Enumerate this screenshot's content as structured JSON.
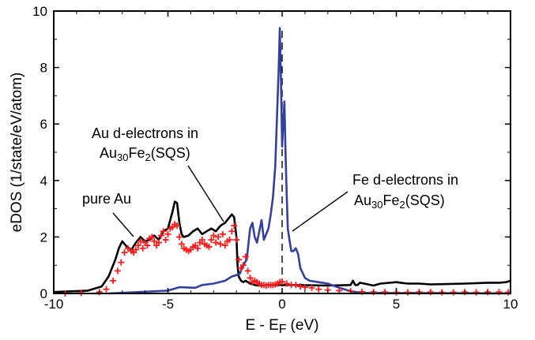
{
  "chart_data": {
    "type": "line",
    "xlabel": "E - E",
    "xlabel_sub": "F",
    "xlabel_unit": "(eV)",
    "ylabel": "eDOS (1/state/eV/atom)",
    "xlim": [
      -10,
      10
    ],
    "ylim": [
      0,
      10
    ],
    "x_ticks": [
      -10,
      -5,
      0,
      5,
      10
    ],
    "x_tick_labels": [
      "-10",
      "-5",
      "0",
      "5",
      "10"
    ],
    "y_ticks": [
      0,
      2,
      4,
      6,
      8,
      10
    ],
    "y_tick_labels": [
      "0",
      "2",
      "4",
      "6",
      "8",
      "10"
    ],
    "fermi_level": 0,
    "colors": {
      "pure_au": "#000000",
      "au_d": "#ff1a1a",
      "fe_d": "#3340a0"
    },
    "series": [
      {
        "key": "pure_au",
        "style": "line",
        "x": [
          -10,
          -8.5,
          -7.9,
          -7.6,
          -7.3,
          -7.15,
          -7.0,
          -6.8,
          -6.6,
          -6.4,
          -6.2,
          -6.0,
          -5.8,
          -5.6,
          -5.4,
          -5.2,
          -5.0,
          -4.9,
          -4.8,
          -4.7,
          -4.6,
          -4.5,
          -4.4,
          -4.3,
          -4.1,
          -3.9,
          -3.7,
          -3.5,
          -3.3,
          -3.1,
          -2.9,
          -2.7,
          -2.5,
          -2.3,
          -2.2,
          -2.1,
          -2.0,
          -1.95,
          -1.9,
          -1.8,
          -1.7,
          -1.6,
          -1.4,
          -1.2,
          -1.0,
          -0.5,
          0.5,
          2,
          3,
          3.1,
          3.2,
          3.3,
          3.4,
          3.6,
          4,
          4.3,
          5,
          5.5,
          6,
          6.5,
          7,
          8,
          9,
          9.5,
          9.8,
          10
        ],
        "y": [
          0.05,
          0.1,
          0.25,
          0.6,
          1.2,
          1.6,
          1.85,
          1.65,
          1.55,
          1.8,
          2.0,
          1.85,
          1.9,
          2.05,
          1.9,
          2.2,
          2.3,
          2.6,
          2.9,
          3.25,
          3.2,
          2.5,
          2.1,
          2.0,
          2.05,
          2.2,
          2.3,
          2.1,
          2.2,
          2.3,
          2.2,
          2.4,
          2.5,
          2.7,
          2.8,
          2.7,
          2.0,
          1.0,
          0.6,
          0.45,
          0.4,
          0.45,
          0.35,
          0.3,
          0.28,
          0.3,
          0.3,
          0.28,
          0.3,
          0.45,
          0.3,
          0.3,
          0.38,
          0.35,
          0.28,
          0.35,
          0.4,
          0.35,
          0.35,
          0.32,
          0.33,
          0.35,
          0.38,
          0.38,
          0.4,
          0.45
        ]
      },
      {
        "key": "fe_d",
        "style": "line",
        "x": [
          -7.6,
          -5,
          -4.5,
          -3.8,
          -3.5,
          -3.0,
          -2.5,
          -2.2,
          -2.0,
          -1.85,
          -1.7,
          -1.55,
          -1.4,
          -1.3,
          -1.2,
          -1.1,
          -1.0,
          -0.9,
          -0.8,
          -0.6,
          -0.5,
          -0.4,
          -0.3,
          -0.2,
          -0.15,
          -0.1,
          -0.05,
          0.0,
          0.05,
          0.1,
          0.15,
          0.2,
          0.25,
          0.3,
          0.4,
          0.5,
          0.6,
          0.7,
          0.8,
          1.0,
          1.2,
          1.6,
          2.0,
          2.5,
          3.0,
          3.5,
          10
        ],
        "y": [
          0.0,
          0.1,
          0.22,
          0.2,
          0.3,
          0.35,
          0.45,
          0.6,
          0.65,
          0.7,
          1.0,
          1.2,
          2.3,
          2.5,
          2.0,
          1.8,
          2.2,
          2.6,
          1.9,
          2.3,
          2.8,
          3.4,
          4.5,
          6.8,
          8.0,
          9.4,
          7.5,
          5.2,
          6.0,
          6.8,
          5.0,
          3.5,
          2.3,
          2.0,
          1.5,
          1.5,
          1.6,
          1.4,
          0.9,
          0.55,
          0.45,
          0.4,
          0.35,
          0.2,
          0.08,
          0.02,
          0.0
        ]
      },
      {
        "key": "au_d",
        "style": "markers",
        "x": [
          -9.5,
          -8.8,
          -8.0,
          -7.7,
          -7.4,
          -7.2,
          -7.05,
          -6.9,
          -6.75,
          -6.6,
          -6.5,
          -6.4,
          -6.3,
          -6.2,
          -6.1,
          -6.0,
          -5.9,
          -5.8,
          -5.7,
          -5.6,
          -5.5,
          -5.4,
          -5.3,
          -5.2,
          -5.1,
          -5.0,
          -4.9,
          -4.8,
          -4.7,
          -4.6,
          -4.5,
          -4.4,
          -4.3,
          -4.2,
          -4.1,
          -4.0,
          -3.9,
          -3.8,
          -3.7,
          -3.6,
          -3.5,
          -3.4,
          -3.3,
          -3.2,
          -3.1,
          -3.0,
          -2.9,
          -2.8,
          -2.7,
          -2.6,
          -2.5,
          -2.4,
          -2.3,
          -2.2,
          -2.1,
          -2.0,
          -1.9,
          -1.8,
          -1.7,
          -1.6,
          -1.5,
          -1.4,
          -1.3,
          -1.2,
          -1.1,
          -1.0,
          -0.9,
          -0.8,
          -0.7,
          -0.6,
          -0.5,
          -0.4,
          -0.3,
          -0.2,
          -0.1,
          0.0,
          0.2,
          0.4,
          0.6,
          0.8,
          1.0,
          1.3,
          1.6,
          2.0,
          2.5,
          3.0,
          3.5,
          4.0,
          4.5,
          5.0,
          5.5,
          6.0,
          6.5,
          7.0,
          7.5,
          8.0,
          8.5,
          9.0,
          9.5,
          9.9
        ],
        "y": [
          0.0,
          0.02,
          0.05,
          0.15,
          0.45,
          0.8,
          1.1,
          1.45,
          1.6,
          1.5,
          1.45,
          1.55,
          1.7,
          1.85,
          1.6,
          1.8,
          1.7,
          1.95,
          2.0,
          1.85,
          1.7,
          1.8,
          2.05,
          2.2,
          1.9,
          2.1,
          2.3,
          2.35,
          2.45,
          2.4,
          2.0,
          1.75,
          1.6,
          1.55,
          1.5,
          1.55,
          1.65,
          1.7,
          1.6,
          1.8,
          1.9,
          1.75,
          1.7,
          1.65,
          1.9,
          2.05,
          1.8,
          2.0,
          1.75,
          2.1,
          1.7,
          1.85,
          1.9,
          2.2,
          2.4,
          1.9,
          1.2,
          0.9,
          1.0,
          1.3,
          0.8,
          0.55,
          0.4,
          0.45,
          0.4,
          0.35,
          0.3,
          0.3,
          0.28,
          0.3,
          0.3,
          0.3,
          0.32,
          0.35,
          0.4,
          0.42,
          0.35,
          0.3,
          0.3,
          0.25,
          0.22,
          0.2,
          0.15,
          0.12,
          0.1,
          0.08,
          0.06,
          0.05,
          0.05,
          0.04,
          0.04,
          0.05,
          0.05,
          0.04,
          0.04,
          0.05,
          0.04,
          0.05,
          0.05,
          0.04
        ]
      }
    ],
    "annotations": [
      {
        "key": "pure_au",
        "lines": [
          "pure Au"
        ]
      },
      {
        "key": "au_d",
        "lines": [
          "Au d-electrons in",
          "Au30Fe2(SQS)"
        ]
      },
      {
        "key": "fe_d",
        "lines": [
          "Fe d-electrons in",
          "Au30Fe2(SQS)"
        ]
      }
    ],
    "formula": {
      "a": "Au",
      "a_sub": "30",
      "b": "Fe",
      "b_sub": "2",
      "suffix": "(SQS)"
    },
    "annotation_texts": {
      "pure_au": "pure Au",
      "electrons_au": "Au d-electrons in",
      "electrons_fe": "Fe d-electrons in"
    }
  }
}
